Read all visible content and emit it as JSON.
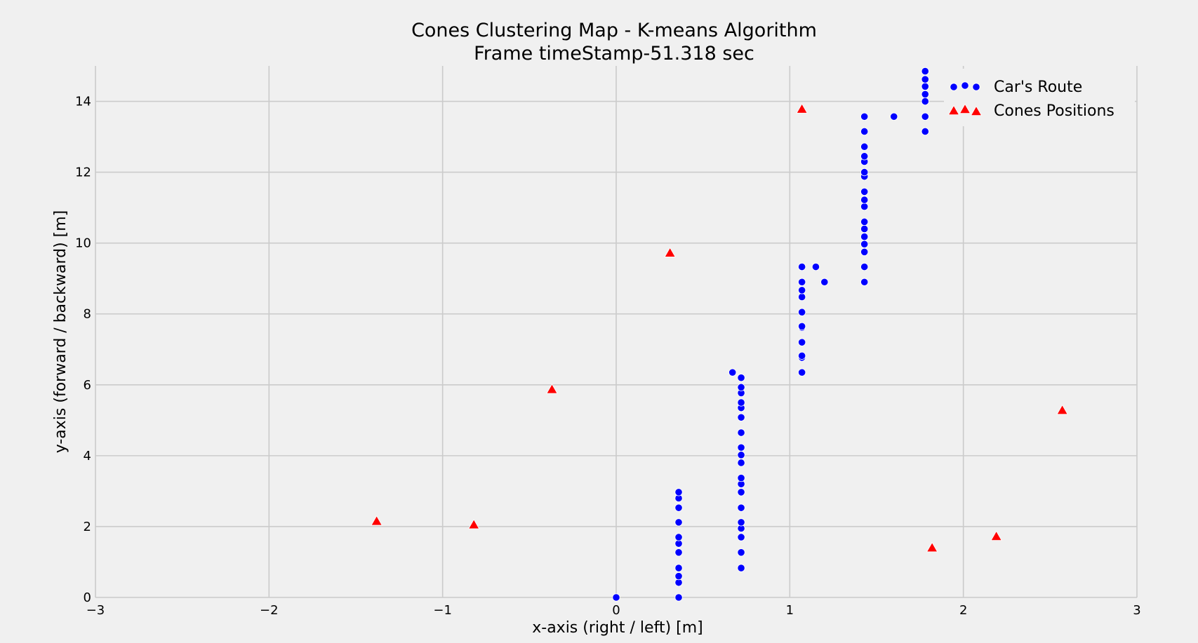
{
  "chart_data": {
    "type": "scatter",
    "title": "Cones Clustering Map - K-means Algorithm",
    "subtitle": "Frame timeStamp-51.318 sec",
    "xlabel": "x-axis (right / left) [m]",
    "ylabel": "y-axis (forward / backward) [m]",
    "xlim": [
      -3,
      3
    ],
    "ylim": [
      0,
      15
    ],
    "x_ticks": [
      -3,
      -2,
      -1,
      0,
      1,
      2,
      3
    ],
    "x_tick_labels": [
      "−3",
      "−2",
      "−1",
      "0",
      "1",
      "2",
      "3"
    ],
    "y_ticks": [
      0,
      2,
      4,
      6,
      8,
      10,
      12,
      14
    ],
    "y_tick_labels": [
      "0",
      "2",
      "4",
      "6",
      "8",
      "10",
      "12",
      "14"
    ],
    "grid": true,
    "legend_position": "top-right",
    "series": [
      {
        "name": "Car's Route",
        "marker": "circle",
        "color": "#0000ff",
        "points": [
          [
            0.0,
            0.0
          ],
          [
            0.36,
            0.0
          ],
          [
            0.36,
            0.42
          ],
          [
            0.36,
            0.6
          ],
          [
            0.36,
            0.83
          ],
          [
            0.36,
            1.27
          ],
          [
            0.36,
            1.52
          ],
          [
            0.36,
            1.7
          ],
          [
            0.36,
            2.12
          ],
          [
            0.36,
            2.53
          ],
          [
            0.36,
            2.8
          ],
          [
            0.36,
            2.97
          ],
          [
            0.72,
            0.83
          ],
          [
            0.72,
            1.27
          ],
          [
            0.72,
            1.7
          ],
          [
            0.72,
            1.95
          ],
          [
            0.72,
            2.12
          ],
          [
            0.72,
            2.53
          ],
          [
            0.72,
            2.97
          ],
          [
            0.72,
            3.2
          ],
          [
            0.72,
            3.37
          ],
          [
            0.72,
            3.8
          ],
          [
            0.72,
            4.02
          ],
          [
            0.72,
            4.23
          ],
          [
            0.72,
            4.65
          ],
          [
            0.72,
            5.08
          ],
          [
            0.72,
            5.35
          ],
          [
            0.72,
            5.5
          ],
          [
            0.72,
            5.77
          ],
          [
            0.72,
            5.93
          ],
          [
            0.72,
            6.2
          ],
          [
            0.67,
            6.35
          ],
          [
            1.07,
            6.35
          ],
          [
            1.07,
            6.77
          ],
          [
            1.07,
            6.82
          ],
          [
            1.07,
            7.2
          ],
          [
            1.07,
            7.62
          ],
          [
            1.07,
            7.65
          ],
          [
            1.07,
            8.05
          ],
          [
            1.07,
            8.48
          ],
          [
            1.07,
            8.67
          ],
          [
            1.07,
            8.9
          ],
          [
            1.07,
            9.33
          ],
          [
            1.15,
            9.33
          ],
          [
            1.2,
            8.9
          ],
          [
            1.43,
            8.9
          ],
          [
            1.43,
            9.33
          ],
          [
            1.43,
            9.75
          ],
          [
            1.43,
            9.97
          ],
          [
            1.43,
            10.18
          ],
          [
            1.43,
            10.4
          ],
          [
            1.43,
            10.6
          ],
          [
            1.43,
            11.03
          ],
          [
            1.43,
            11.22
          ],
          [
            1.43,
            11.45
          ],
          [
            1.43,
            11.88
          ],
          [
            1.43,
            12.0
          ],
          [
            1.43,
            12.3
          ],
          [
            1.43,
            12.45
          ],
          [
            1.43,
            12.72
          ],
          [
            1.43,
            13.15
          ],
          [
            1.43,
            13.57
          ],
          [
            1.6,
            13.57
          ],
          [
            1.78,
            13.15
          ],
          [
            1.78,
            13.57
          ],
          [
            1.78,
            14.0
          ],
          [
            1.78,
            14.2
          ],
          [
            1.78,
            14.42
          ],
          [
            1.78,
            14.62
          ],
          [
            1.78,
            14.85
          ]
        ]
      },
      {
        "name": "Cones Positions",
        "marker": "triangle",
        "color": "#ff0000",
        "points": [
          [
            1.07,
            13.78
          ],
          [
            0.31,
            9.72
          ],
          [
            -0.37,
            5.87
          ],
          [
            -1.38,
            2.15
          ],
          [
            -0.82,
            2.05
          ],
          [
            2.57,
            5.28
          ],
          [
            1.82,
            1.4
          ],
          [
            2.19,
            1.72
          ]
        ]
      }
    ]
  }
}
